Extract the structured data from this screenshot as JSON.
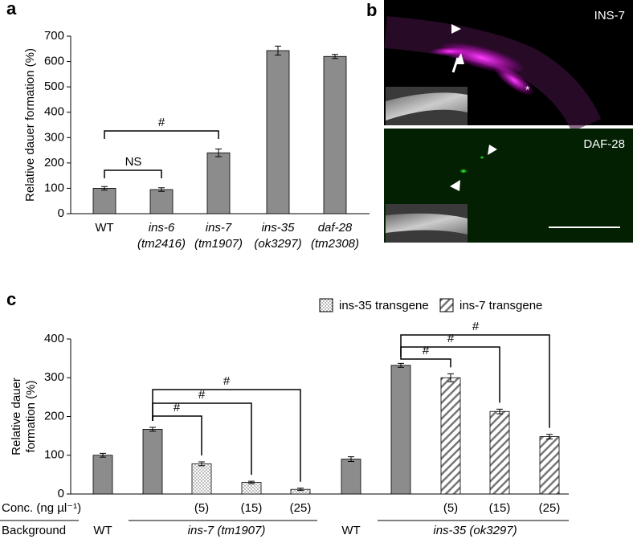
{
  "chart_data": [
    {
      "type": "bar",
      "panel_label": "a",
      "ylabel": [
        "Relative dauer formation (%)"
      ],
      "categories": [
        "WT",
        "ins-6",
        "ins-7",
        "ins-35",
        "daf-28"
      ],
      "category_sublabels": [
        null,
        "(tm2416)",
        "(tm1907)",
        "(ok3297)",
        "(tm2308)"
      ],
      "values": [
        100,
        95,
        240,
        643,
        620
      ],
      "errors": [
        7,
        7,
        15,
        18,
        8
      ],
      "patterns": [
        "solid",
        "solid",
        "solid",
        "solid",
        "solid"
      ],
      "color": "#8c8c8c",
      "ylim": [
        0,
        700
      ],
      "yticks": [
        0,
        100,
        200,
        300,
        400,
        500,
        600,
        700
      ],
      "annotations": [
        "NS",
        "#"
      ]
    },
    {
      "type": "bar",
      "panel_label": "c",
      "ylabel": [
        "Relative dauer",
        "formation (%)"
      ],
      "values": [
        100,
        167,
        78,
        30,
        12,
        90,
        332,
        300,
        213,
        148
      ],
      "errors": [
        5,
        5,
        5,
        3,
        3,
        6,
        5,
        10,
        6,
        6
      ],
      "patterns": [
        "solid",
        "solid",
        "dots",
        "dots",
        "dots",
        "solid",
        "solid",
        "hatch",
        "hatch",
        "hatch"
      ],
      "color": "#8c8c8c",
      "legend": [
        {
          "name": "ins-35 transgene",
          "pattern": "dots"
        },
        {
          "name": "ins-7 transgene",
          "pattern": "hatch"
        }
      ],
      "conc_title": "Conc. (ng µl⁻¹)",
      "conc_labels": [
        null,
        null,
        "(5)",
        "(15)",
        "(25)",
        null,
        null,
        "(5)",
        "(15)",
        "(25)"
      ],
      "background_title": "Background",
      "background_labels": [
        "WT",
        "ins-7 (tm1907)",
        "WT",
        "ins-35 (ok3297)"
      ],
      "ylim": [
        0,
        400
      ],
      "yticks": [
        0,
        100,
        200,
        300,
        400
      ],
      "annotations": [
        "#",
        "#",
        "#",
        "#",
        "#",
        "#"
      ]
    }
  ],
  "image_panel": {
    "panel_label": "b",
    "images": [
      {
        "label": "INS-7"
      },
      {
        "label": "DAF-28"
      }
    ]
  }
}
